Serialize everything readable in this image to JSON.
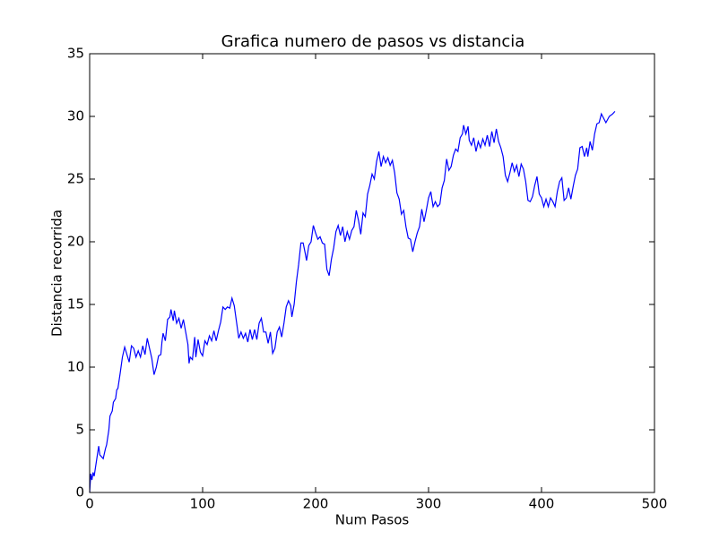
{
  "chart_data": {
    "type": "line",
    "title": "Grafica numero de pasos vs distancia",
    "xlabel": "Num Pasos",
    "ylabel": "Distancia recorrida",
    "xlim": [
      0,
      500
    ],
    "xticks": [
      0,
      100,
      200,
      300,
      400,
      500
    ],
    "ylim": [
      0,
      35
    ],
    "yticks": [
      0,
      5,
      10,
      15,
      20,
      25,
      30,
      35
    ],
    "grid": false,
    "series": [
      {
        "color": "#0000ff",
        "x": [
          0,
          1,
          2,
          3,
          4,
          6,
          8,
          9,
          12,
          14,
          15,
          17,
          18,
          20,
          21,
          23,
          24,
          25,
          27,
          29,
          31,
          33,
          35,
          37,
          39,
          41,
          43,
          45,
          47,
          49,
          51,
          53,
          55,
          57,
          59,
          61,
          63,
          64,
          65,
          67,
          69,
          71,
          72,
          74,
          75,
          77,
          79,
          81,
          83,
          85,
          87,
          88,
          89,
          91,
          93,
          94,
          96,
          98,
          100,
          102,
          104,
          106,
          108,
          110,
          112,
          114,
          116,
          118,
          120,
          122,
          124,
          126,
          128,
          130,
          132,
          134,
          136,
          138,
          140,
          142,
          144,
          146,
          148,
          150,
          152,
          154,
          156,
          158,
          160,
          162,
          164,
          166,
          168,
          170,
          172,
          174,
          176,
          178,
          179,
          181,
          183,
          185,
          187,
          189,
          191,
          192,
          194,
          196,
          198,
          200,
          202,
          204,
          206,
          208,
          210,
          212,
          214,
          216,
          218,
          220,
          222,
          224,
          226,
          228,
          230,
          232,
          234,
          236,
          238,
          240,
          242,
          244,
          246,
          248,
          250,
          252,
          254,
          256,
          258,
          260,
          262,
          264,
          266,
          268,
          270,
          272,
          274,
          276,
          278,
          280,
          282,
          284,
          286,
          288,
          290,
          292,
          294,
          296,
          298,
          300,
          302,
          304,
          306,
          308,
          310,
          312,
          314,
          316,
          318,
          320,
          322,
          324,
          326,
          328,
          330,
          331,
          333,
          335,
          336,
          338,
          340,
          342,
          344,
          346,
          348,
          350,
          352,
          354,
          356,
          358,
          360,
          362,
          364,
          366,
          368,
          370,
          372,
          374,
          376,
          378,
          380,
          382,
          384,
          386,
          388,
          390,
          392,
          394,
          396,
          398,
          400,
          402,
          404,
          406,
          408,
          410,
          412,
          414,
          416,
          418,
          420,
          422,
          424,
          426,
          428,
          430,
          432,
          434,
          436,
          438,
          440,
          441,
          443,
          445,
          447,
          449,
          451,
          453,
          457,
          460,
          463,
          465
        ],
        "values": [
          0,
          1.5,
          1,
          1.6,
          1.3,
          2.5,
          3.7,
          3,
          2.7,
          3.5,
          3.8,
          5,
          6.1,
          6.5,
          7.2,
          7.5,
          8.2,
          8.3,
          9.5,
          10.8,
          11.6,
          11,
          10.4,
          11.7,
          11.5,
          10.8,
          11.3,
          10.8,
          11.7,
          11,
          12.3,
          11.5,
          10.7,
          9.4,
          10,
          10.9,
          11,
          12,
          12.7,
          12.1,
          13.8,
          14,
          14.6,
          13.7,
          14.5,
          13.5,
          13.9,
          13.1,
          13.8,
          12.8,
          11.8,
          10.3,
          10.8,
          10.6,
          12.4,
          10.8,
          12.2,
          11.2,
          10.9,
          12.1,
          11.8,
          12.5,
          12.1,
          12.9,
          12.1,
          12.9,
          13.6,
          14.8,
          14.6,
          14.8,
          14.7,
          15.5,
          14.9,
          13.6,
          12.3,
          12.8,
          12.3,
          12.7,
          12,
          13,
          12.2,
          13,
          12.2,
          13.5,
          13.9,
          12.8,
          12.8,
          11.9,
          12.8,
          11.1,
          11.5,
          12.8,
          13.2,
          12.4,
          13.5,
          14.8,
          15.3,
          14.9,
          14,
          15,
          16.8,
          18.2,
          19.9,
          19.9,
          19,
          18.5,
          19.7,
          20,
          21.3,
          20.7,
          20.2,
          20.4,
          19.9,
          19.8,
          17.8,
          17.3,
          18.6,
          19.5,
          20.8,
          21.3,
          20.5,
          21.2,
          20,
          20.8,
          20.2,
          20.9,
          21.2,
          22.5,
          21.7,
          20.6,
          22.3,
          22,
          23.8,
          24.5,
          25.4,
          25,
          26.4,
          27.2,
          26,
          26.8,
          26.3,
          26.7,
          26.1,
          26.5,
          25.5,
          23.9,
          23.4,
          22.2,
          22.5,
          21.2,
          20.3,
          20.2,
          19.2,
          20,
          20.7,
          21.2,
          22.6,
          21.6,
          22.5,
          23.5,
          24,
          22.8,
          23.2,
          22.8,
          23,
          24.3,
          24.9,
          26.6,
          25.7,
          26,
          26.9,
          27.4,
          27.2,
          28.3,
          28.6,
          29.3,
          28.6,
          29.2,
          28.1,
          27.7,
          28.3,
          27.2,
          28,
          27.5,
          28.2,
          27.7,
          28.5,
          27.6,
          28.8,
          27.9,
          29,
          28,
          27.5,
          26.8,
          25.3,
          24.8,
          25.5,
          26.3,
          25.6,
          26.1,
          25.2,
          26.2,
          25.8,
          24.8,
          23.3,
          23.2,
          23.6,
          24.5,
          25.2,
          23.8,
          23.5,
          22.8,
          23.4,
          22.8,
          23.5,
          23.2,
          22.8,
          24,
          24.8,
          25.1,
          23.3,
          23.5,
          24.3,
          23.4,
          24.4,
          25.3,
          25.8,
          27.5,
          27.6,
          26.8,
          27.5,
          26.8,
          28,
          27.3,
          28.6,
          29.4,
          29.5,
          30.2,
          29.5,
          30,
          30.2,
          30.4
        ]
      }
    ]
  }
}
